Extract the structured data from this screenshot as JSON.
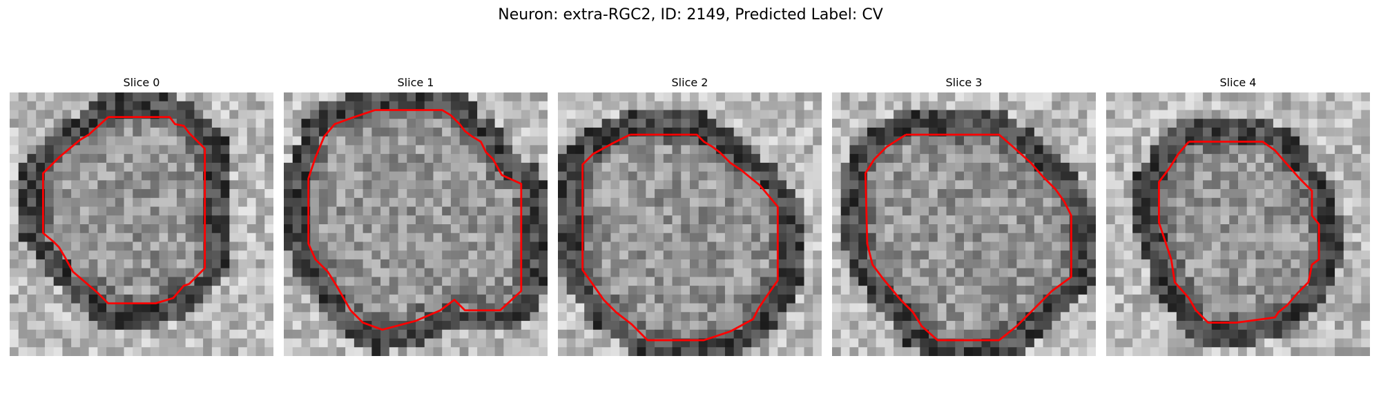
{
  "figure": {
    "title": "Neuron: extra-RGC2, ID: 2149, Predicted Label: CV"
  },
  "panels": [
    {
      "title": "Slice 0",
      "image": "grayscale-em-slice",
      "contour_color": "#ff0000",
      "contour": [
        [
          112,
          28
        ],
        [
          182,
          28
        ],
        [
          188,
          36
        ],
        [
          198,
          38
        ],
        [
          204,
          46
        ],
        [
          210,
          52
        ],
        [
          222,
          64
        ],
        [
          222,
          200
        ],
        [
          210,
          212
        ],
        [
          204,
          218
        ],
        [
          198,
          220
        ],
        [
          186,
          234
        ],
        [
          166,
          240
        ],
        [
          112,
          240
        ],
        [
          100,
          228
        ],
        [
          72,
          204
        ],
        [
          62,
          186
        ],
        [
          56,
          176
        ],
        [
          50,
          170
        ],
        [
          38,
          160
        ],
        [
          38,
          92
        ],
        [
          56,
          74
        ],
        [
          80,
          54
        ],
        [
          90,
          48
        ],
        [
          112,
          28
        ]
      ]
    },
    {
      "title": "Slice 1",
      "image": "grayscale-em-slice",
      "contour_color": "#ff0000",
      "contour": [
        [
          104,
          20
        ],
        [
          180,
          20
        ],
        [
          190,
          26
        ],
        [
          200,
          36
        ],
        [
          206,
          44
        ],
        [
          214,
          50
        ],
        [
          224,
          56
        ],
        [
          230,
          68
        ],
        [
          238,
          76
        ],
        [
          248,
          94
        ],
        [
          270,
          104
        ],
        [
          270,
          226
        ],
        [
          246,
          248
        ],
        [
          206,
          248
        ],
        [
          194,
          236
        ],
        [
          178,
          248
        ],
        [
          150,
          260
        ],
        [
          112,
          270
        ],
        [
          90,
          262
        ],
        [
          76,
          248
        ],
        [
          60,
          220
        ],
        [
          50,
          204
        ],
        [
          36,
          190
        ],
        [
          28,
          172
        ],
        [
          28,
          98
        ],
        [
          36,
          74
        ],
        [
          46,
          50
        ],
        [
          58,
          36
        ],
        [
          80,
          28
        ],
        [
          104,
          20
        ]
      ]
    },
    {
      "title": "Slice 2",
      "image": "grayscale-em-slice",
      "contour_color": "#ff0000",
      "contour": [
        [
          82,
          48
        ],
        [
          158,
          48
        ],
        [
          166,
          56
        ],
        [
          176,
          62
        ],
        [
          184,
          68
        ],
        [
          190,
          74
        ],
        [
          196,
          80
        ],
        [
          208,
          88
        ],
        [
          230,
          106
        ],
        [
          250,
          130
        ],
        [
          250,
          214
        ],
        [
          236,
          234
        ],
        [
          228,
          246
        ],
        [
          222,
          258
        ],
        [
          196,
          272
        ],
        [
          166,
          282
        ],
        [
          102,
          282
        ],
        [
          84,
          264
        ],
        [
          66,
          250
        ],
        [
          52,
          236
        ],
        [
          38,
          216
        ],
        [
          28,
          202
        ],
        [
          28,
          82
        ],
        [
          40,
          70
        ],
        [
          62,
          58
        ],
        [
          82,
          48
        ]
      ]
    },
    {
      "title": "Slice 3",
      "image": "grayscale-em-slice",
      "contour_color": "#ff0000",
      "contour": [
        [
          84,
          48
        ],
        [
          190,
          48
        ],
        [
          206,
          62
        ],
        [
          226,
          80
        ],
        [
          240,
          96
        ],
        [
          254,
          110
        ],
        [
          264,
          124
        ],
        [
          272,
          140
        ],
        [
          272,
          210
        ],
        [
          250,
          226
        ],
        [
          226,
          250
        ],
        [
          210,
          266
        ],
        [
          190,
          282
        ],
        [
          120,
          282
        ],
        [
          102,
          266
        ],
        [
          92,
          250
        ],
        [
          78,
          236
        ],
        [
          58,
          212
        ],
        [
          46,
          196
        ],
        [
          40,
          172
        ],
        [
          38,
          92
        ],
        [
          48,
          76
        ],
        [
          62,
          62
        ],
        [
          84,
          48
        ]
      ]
    },
    {
      "title": "Slice 4",
      "image": "grayscale-em-slice",
      "contour_color": "#ff0000",
      "contour": [
        [
          94,
          56
        ],
        [
          178,
          56
        ],
        [
          192,
          66
        ],
        [
          206,
          82
        ],
        [
          220,
          98
        ],
        [
          234,
          112
        ],
        [
          234,
          140
        ],
        [
          242,
          150
        ],
        [
          242,
          190
        ],
        [
          234,
          196
        ],
        [
          230,
          216
        ],
        [
          218,
          228
        ],
        [
          206,
          242
        ],
        [
          196,
          250
        ],
        [
          192,
          256
        ],
        [
          148,
          262
        ],
        [
          116,
          262
        ],
        [
          102,
          248
        ],
        [
          94,
          234
        ],
        [
          78,
          216
        ],
        [
          74,
          190
        ],
        [
          64,
          160
        ],
        [
          60,
          148
        ],
        [
          60,
          102
        ],
        [
          72,
          86
        ],
        [
          82,
          70
        ],
        [
          94,
          56
        ]
      ]
    }
  ]
}
